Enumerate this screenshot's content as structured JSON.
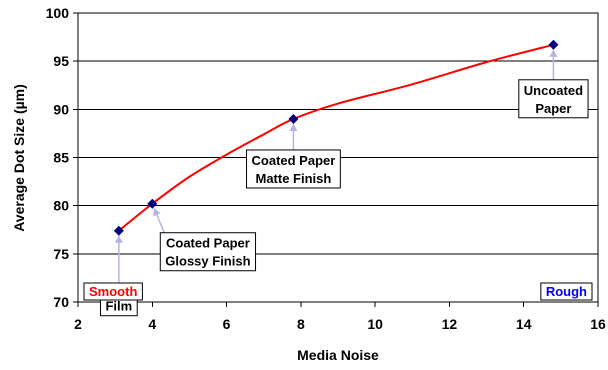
{
  "chart_data": {
    "type": "scatter",
    "title": "",
    "xlabel": "Media Noise",
    "ylabel": "Average Dot Size (µm)",
    "xlim": [
      2,
      16
    ],
    "ylim": [
      70,
      100
    ],
    "x_ticks": [
      "2",
      "4",
      "6",
      "8",
      "10",
      "12",
      "14",
      "16"
    ],
    "y_ticks": [
      "70",
      "75",
      "80",
      "85",
      "90",
      "95",
      "100"
    ],
    "grid": "horizontal",
    "marker_color": "#000080",
    "curve_color": "#ff0000",
    "points": [
      {
        "x": 3.1,
        "y": 77.4,
        "label": [
          "Film"
        ]
      },
      {
        "x": 4.0,
        "y": 80.2,
        "label": [
          "Coated Paper",
          "Glossy Finish"
        ]
      },
      {
        "x": 7.8,
        "y": 89.0,
        "label": [
          "Coated Paper",
          "Matte Finish"
        ]
      },
      {
        "x": 14.8,
        "y": 96.7,
        "label": [
          "Uncoated",
          "Paper"
        ]
      }
    ],
    "fit_curve": [
      {
        "x": 3.1,
        "y": 77.4
      },
      {
        "x": 4.0,
        "y": 80.2
      },
      {
        "x": 5.0,
        "y": 83.0
      },
      {
        "x": 6.0,
        "y": 85.3
      },
      {
        "x": 7.0,
        "y": 87.4
      },
      {
        "x": 7.8,
        "y": 89.0
      },
      {
        "x": 9.0,
        "y": 90.6
      },
      {
        "x": 11.0,
        "y": 92.6
      },
      {
        "x": 13.0,
        "y": 94.9
      },
      {
        "x": 14.8,
        "y": 96.7
      }
    ],
    "region_labels": [
      {
        "text": "Smooth",
        "color": "#ff0000"
      },
      {
        "text": "Rough",
        "color": "#0000ff"
      }
    ]
  }
}
